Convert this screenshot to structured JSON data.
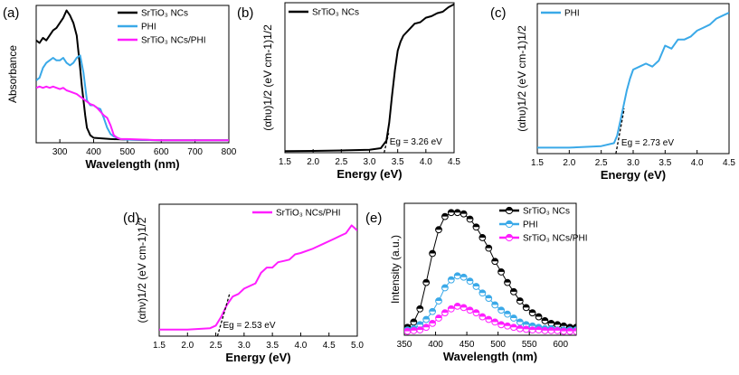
{
  "colors": {
    "black": "#000000",
    "blue": "#3aa9e8",
    "magenta": "#ff1eff",
    "axis": "#000000"
  },
  "chart_data": [
    {
      "id": "a",
      "panel_label": "(a)",
      "type": "line",
      "xlabel": "Wavelength (nm)",
      "ylabel": "Absorbance",
      "xlim": [
        230,
        800
      ],
      "ylim": [
        0,
        1.1
      ],
      "xticks": [
        300,
        400,
        500,
        600,
        700,
        800
      ],
      "yticks": [],
      "legend": {
        "position": "top-right"
      },
      "series": [
        {
          "name": "SrTiO₃ NCs",
          "color": "black",
          "marker": "none",
          "x": [
            230,
            240,
            250,
            260,
            270,
            280,
            290,
            300,
            310,
            320,
            330,
            340,
            350,
            360,
            365,
            370,
            375,
            380,
            390,
            400,
            450,
            500,
            600,
            700,
            800
          ],
          "y": [
            0.82,
            0.8,
            0.84,
            0.82,
            0.86,
            0.9,
            0.92,
            0.96,
            1.0,
            1.06,
            1.02,
            0.96,
            0.86,
            0.6,
            0.46,
            0.34,
            0.22,
            0.12,
            0.06,
            0.04,
            0.03,
            0.025,
            0.02,
            0.02,
            0.02
          ]
        },
        {
          "name": "PHI",
          "color": "blue",
          "marker": "none",
          "x": [
            230,
            240,
            250,
            260,
            270,
            280,
            290,
            300,
            310,
            320,
            330,
            340,
            350,
            360,
            370,
            380,
            390,
            400,
            410,
            420,
            430,
            440,
            450,
            460,
            470,
            480,
            500,
            600,
            700,
            800
          ],
          "y": [
            0.5,
            0.52,
            0.6,
            0.64,
            0.66,
            0.68,
            0.66,
            0.66,
            0.68,
            0.64,
            0.62,
            0.64,
            0.68,
            0.7,
            0.56,
            0.34,
            0.3,
            0.3,
            0.28,
            0.27,
            0.2,
            0.12,
            0.07,
            0.05,
            0.04,
            0.03,
            0.025,
            0.02,
            0.02,
            0.02
          ]
        },
        {
          "name": "SrTiO₃ NCs/PHI",
          "color": "magenta",
          "marker": "none",
          "x": [
            230,
            240,
            250,
            260,
            270,
            280,
            290,
            300,
            310,
            320,
            330,
            340,
            350,
            360,
            370,
            380,
            390,
            400,
            410,
            420,
            430,
            440,
            450,
            460,
            470,
            480,
            500,
            600,
            700,
            800
          ],
          "y": [
            0.44,
            0.45,
            0.44,
            0.45,
            0.44,
            0.45,
            0.44,
            0.43,
            0.44,
            0.42,
            0.41,
            0.4,
            0.39,
            0.37,
            0.35,
            0.33,
            0.31,
            0.3,
            0.28,
            0.25,
            0.22,
            0.2,
            0.14,
            0.06,
            0.04,
            0.03,
            0.03,
            0.02,
            0.02,
            0.02
          ]
        }
      ]
    },
    {
      "id": "b",
      "panel_label": "(b)",
      "type": "line",
      "xlabel": "Energy (eV)",
      "ylabel": "(αhυ)1/2 (eV cm-1)1/2",
      "xlim": [
        1.5,
        4.5
      ],
      "ylim": [
        0,
        1.0
      ],
      "xticks": [
        "1.5",
        "2.0",
        "2.5",
        "3.0",
        "3.5",
        "4.0",
        "4.5"
      ],
      "yticks": [],
      "legend": {
        "position": "top-left"
      },
      "annotation": "Eg = 3.26 eV",
      "series": [
        {
          "name": "SrTiO₃ NCs",
          "color": "black",
          "marker": "none",
          "x": [
            1.5,
            2.0,
            2.5,
            3.0,
            3.2,
            3.3,
            3.35,
            3.4,
            3.45,
            3.5,
            3.55,
            3.6,
            3.7,
            3.8,
            3.9,
            4.0,
            4.1,
            4.2,
            4.3,
            4.4,
            4.5
          ],
          "y": [
            0.01,
            0.012,
            0.015,
            0.02,
            0.03,
            0.08,
            0.2,
            0.38,
            0.55,
            0.68,
            0.74,
            0.78,
            0.82,
            0.86,
            0.87,
            0.9,
            0.91,
            0.93,
            0.94,
            0.97,
            0.99
          ]
        },
        {
          "name": "Tangent",
          "color": "black",
          "style": "dashed",
          "marker": "none",
          "x": [
            3.26,
            3.34
          ],
          "y": [
            0.0,
            0.13
          ]
        }
      ]
    },
    {
      "id": "c",
      "panel_label": "(c)",
      "type": "line",
      "xlabel": "Energy (eV)",
      "ylabel": "(αhυ)1/2 (eV cm-1)1/2",
      "xlim": [
        1.5,
        4.5
      ],
      "ylim": [
        0,
        1.0
      ],
      "xticks": [
        "1.5",
        "2.0",
        "2.5",
        "3.0",
        "3.5",
        "4.0",
        "4.5"
      ],
      "yticks": [],
      "legend": {
        "position": "top-left"
      },
      "annotation": "Eg = 2.73 eV",
      "series": [
        {
          "name": "PHI",
          "color": "blue",
          "marker": "none",
          "x": [
            1.5,
            2.0,
            2.5,
            2.7,
            2.75,
            2.8,
            2.85,
            2.9,
            2.95,
            3.0,
            3.1,
            3.2,
            3.3,
            3.4,
            3.5,
            3.6,
            3.7,
            3.8,
            3.9,
            4.0,
            4.1,
            4.2,
            4.3,
            4.4,
            4.5
          ],
          "y": [
            0.04,
            0.04,
            0.05,
            0.07,
            0.12,
            0.22,
            0.32,
            0.42,
            0.5,
            0.56,
            0.58,
            0.6,
            0.58,
            0.62,
            0.72,
            0.7,
            0.76,
            0.76,
            0.78,
            0.82,
            0.84,
            0.86,
            0.9,
            0.92,
            0.94
          ]
        },
        {
          "name": "Tangent",
          "color": "black",
          "style": "dashed",
          "marker": "none",
          "x": [
            2.73,
            2.86
          ],
          "y": [
            0.0,
            0.3
          ]
        }
      ]
    },
    {
      "id": "d",
      "panel_label": "(d)",
      "type": "line",
      "xlabel": "Energy (eV)",
      "ylabel": "(αhν)1/2 (eV cm-1)1/2",
      "xlim": [
        1.5,
        5.0
      ],
      "ylim": [
        0,
        1.0
      ],
      "xticks": [
        "1.5",
        "2.0",
        "2.5",
        "3.0",
        "3.5",
        "4.0",
        "4.5",
        "5.0"
      ],
      "yticks": [],
      "legend": {
        "position": "top-right"
      },
      "annotation": "Eg = 2.53 eV",
      "series": [
        {
          "name": "SrTiO₃ NCs/PHI",
          "color": "magenta",
          "marker": "none",
          "x": [
            1.5,
            2.0,
            2.4,
            2.5,
            2.6,
            2.7,
            2.8,
            2.9,
            3.0,
            3.1,
            3.2,
            3.3,
            3.4,
            3.5,
            3.6,
            3.7,
            3.8,
            3.9,
            4.0,
            4.2,
            4.4,
            4.6,
            4.7,
            4.8,
            4.9,
            4.95,
            5.0
          ],
          "y": [
            0.05,
            0.05,
            0.06,
            0.08,
            0.15,
            0.24,
            0.3,
            0.32,
            0.36,
            0.38,
            0.4,
            0.48,
            0.52,
            0.52,
            0.56,
            0.57,
            0.58,
            0.62,
            0.63,
            0.66,
            0.7,
            0.74,
            0.76,
            0.78,
            0.84,
            0.82,
            0.8
          ]
        },
        {
          "name": "Tangent",
          "color": "black",
          "style": "dashed",
          "marker": "none",
          "x": [
            2.53,
            2.75
          ],
          "y": [
            0.0,
            0.33
          ]
        }
      ]
    },
    {
      "id": "e",
      "panel_label": "(e)",
      "type": "scatter",
      "xlabel": "Wavelength (nm)",
      "ylabel": "Intensity (a.u.)",
      "xlim": [
        350,
        625
      ],
      "ylim": [
        0,
        1.0
      ],
      "xticks": [
        350,
        400,
        450,
        500,
        550,
        600
      ],
      "yticks": [],
      "legend": {
        "position": "top-right"
      },
      "series": [
        {
          "name": "SrTiO₃ NCs",
          "color": "black",
          "marker": "half-circle",
          "x": [
            355,
            365,
            375,
            385,
            395,
            405,
            415,
            425,
            435,
            445,
            455,
            465,
            475,
            485,
            495,
            505,
            515,
            525,
            535,
            545,
            555,
            565,
            575,
            585,
            595,
            605,
            615,
            625
          ],
          "y": [
            0.06,
            0.1,
            0.2,
            0.4,
            0.62,
            0.8,
            0.9,
            0.93,
            0.93,
            0.92,
            0.88,
            0.82,
            0.74,
            0.66,
            0.56,
            0.48,
            0.4,
            0.33,
            0.26,
            0.21,
            0.17,
            0.14,
            0.11,
            0.09,
            0.08,
            0.07,
            0.06,
            0.06
          ]
        },
        {
          "name": "PHI",
          "color": "blue",
          "marker": "half-circle",
          "x": [
            355,
            365,
            375,
            385,
            395,
            405,
            415,
            425,
            435,
            445,
            455,
            465,
            475,
            485,
            495,
            505,
            515,
            525,
            535,
            545,
            555,
            565,
            575,
            585,
            595,
            605,
            615,
            625
          ],
          "y": [
            0.04,
            0.05,
            0.08,
            0.12,
            0.18,
            0.26,
            0.36,
            0.42,
            0.45,
            0.44,
            0.41,
            0.37,
            0.32,
            0.28,
            0.23,
            0.19,
            0.16,
            0.13,
            0.1,
            0.08,
            0.07,
            0.06,
            0.05,
            0.05,
            0.04,
            0.04,
            0.04,
            0.04
          ]
        },
        {
          "name": "SrTiO₃ NCs/PHI",
          "color": "magenta",
          "marker": "half-circle",
          "x": [
            355,
            365,
            375,
            385,
            395,
            405,
            415,
            425,
            435,
            445,
            455,
            465,
            475,
            485,
            495,
            505,
            515,
            525,
            535,
            545,
            555,
            565,
            575,
            585,
            595,
            605,
            615,
            625
          ],
          "y": [
            0.03,
            0.035,
            0.04,
            0.06,
            0.09,
            0.13,
            0.17,
            0.2,
            0.22,
            0.21,
            0.19,
            0.17,
            0.14,
            0.12,
            0.1,
            0.08,
            0.07,
            0.06,
            0.05,
            0.045,
            0.04,
            0.04,
            0.035,
            0.035,
            0.035,
            0.03,
            0.03,
            0.03
          ]
        }
      ]
    }
  ]
}
